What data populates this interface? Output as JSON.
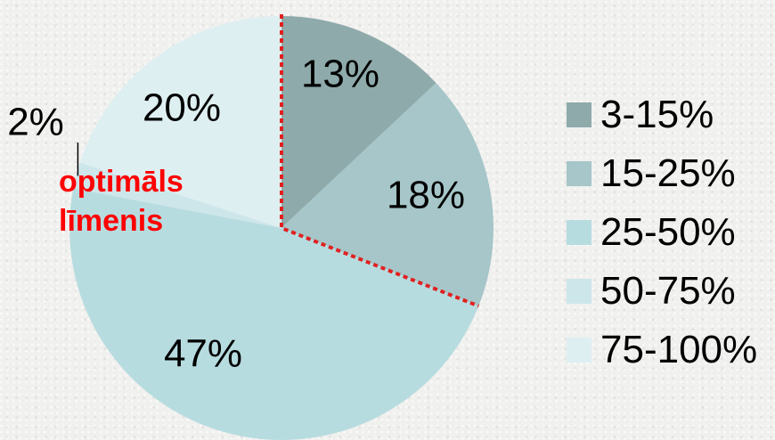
{
  "chart_data": {
    "type": "pie",
    "categories": [
      "3-15%",
      "15-25%",
      "25-50%",
      "50-75%",
      "75-100%"
    ],
    "values": [
      13,
      18,
      47,
      2,
      20
    ],
    "value_labels": [
      "13%",
      "18%",
      "47%",
      "2%",
      "20%"
    ],
    "colors": [
      "#8eaaab",
      "#a6c6c9",
      "#b7dce0",
      "#cde6ea",
      "#deeff1"
    ],
    "legend_position": "right",
    "annotation": {
      "line1": "optimāls",
      "line2": "līmenis",
      "color": "#ff0000",
      "boundary": "dotted red line marking the 3-15% and 15-25% slices"
    }
  }
}
